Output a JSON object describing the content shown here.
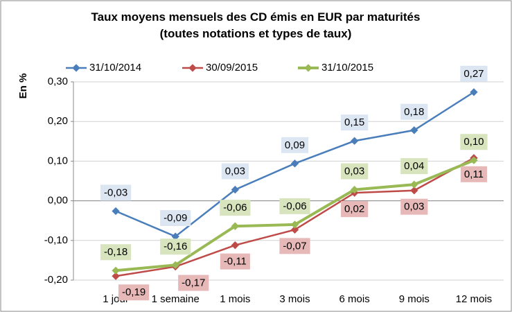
{
  "chart_data": {
    "type": "line",
    "title": "Taux moyens mensuels des CD émis en EUR par maturités (toutes notations et types de taux)",
    "y_label": "En %",
    "categories": [
      "1 jour",
      "1 semaine",
      "1 mois",
      "3 mois",
      "6 mois",
      "9 mois",
      "12 mois"
    ],
    "series": [
      {
        "name": "31/10/2014",
        "color": "#4a7ebb",
        "label_fill": "#dce6f2",
        "values": [
          -0.026,
          -0.09,
          0.028,
          0.094,
          0.151,
          0.178,
          0.274
        ],
        "value_labels": [
          "-0,03",
          "-0,09",
          "0,03",
          "0,09",
          "0,15",
          "0,18",
          "0,27"
        ]
      },
      {
        "name": "30/09/2015",
        "color": "#be4b48",
        "label_fill": "#e6b9b8",
        "values": [
          -0.19,
          -0.166,
          -0.112,
          -0.073,
          0.02,
          0.026,
          0.108
        ],
        "value_labels": [
          "-0,19",
          "-0,17",
          "-0,11",
          "-0,07",
          "0,02",
          "0,03",
          "0,11"
        ]
      },
      {
        "name": "31/10/2015",
        "color": "#98b954",
        "label_fill": "#d7e4bd",
        "values": [
          -0.176,
          -0.162,
          -0.064,
          -0.06,
          0.028,
          0.041,
          0.102
        ],
        "value_labels": [
          "-0,18",
          "-0,16",
          "-0,06",
          "-0,06",
          "0,03",
          "0,04",
          "0,10"
        ]
      }
    ],
    "ylim": [
      -0.2,
      0.3
    ],
    "yticks": [
      {
        "value": -0.2,
        "label": "-0,20"
      },
      {
        "value": -0.1,
        "label": "-0,10"
      },
      {
        "value": 0,
        "label": "0,00"
      },
      {
        "value": 0.1,
        "label": "0,10"
      },
      {
        "value": 0.2,
        "label": "0,20"
      },
      {
        "value": 0.3,
        "label": "0,30"
      }
    ],
    "grid": true
  }
}
